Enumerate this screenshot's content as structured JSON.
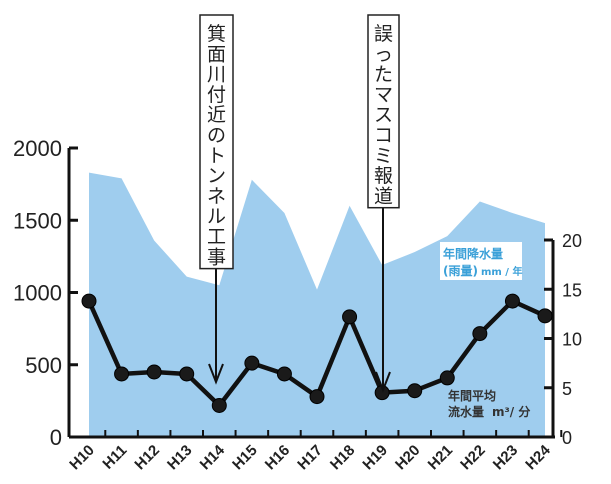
{
  "chart_data": {
    "type": "area+line",
    "categories": [
      "H10",
      "H11",
      "H12",
      "H13",
      "H14",
      "H15",
      "H16",
      "H17",
      "H18",
      "H19",
      "H20",
      "H21",
      "H22",
      "H23",
      "H24"
    ],
    "series": [
      {
        "name": "年間降水量（雨量）mm / 年",
        "type": "area",
        "axis": "left",
        "color": "#9fcdee",
        "values": [
          1830,
          1790,
          1360,
          1110,
          1050,
          1780,
          1550,
          1020,
          1600,
          1190,
          1280,
          1390,
          1630,
          1550,
          1480
        ]
      },
      {
        "name": "年間平均流水量 m³/ 分",
        "type": "line",
        "axis": "right",
        "color": "#111111",
        "values": [
          13.8,
          6.4,
          6.6,
          6.4,
          3.2,
          7.5,
          6.4,
          4.1,
          12.2,
          4.5,
          4.7,
          6.0,
          10.5,
          13.8,
          12.3
        ]
      }
    ],
    "left_axis": {
      "ylim": [
        0,
        2000
      ],
      "ticks": [
        "0",
        "500",
        "1000",
        "1500",
        "2000"
      ]
    },
    "right_axis": {
      "ylim": [
        0,
        20
      ],
      "ticks": [
        "0",
        "5",
        "10",
        "15",
        "20"
      ]
    },
    "legend_labels": {
      "rain_line1": "年間降水量",
      "rain_line2": "(雨量)",
      "rain_unit": "mm / 年",
      "flow_line1": "年間平均",
      "flow_line2": "流水量",
      "flow_unit": "m³/ 分"
    },
    "annotations": [
      {
        "text": "箕面川付近のトンネル工事",
        "at": "H14"
      },
      {
        "text": "誤ったマスコミ報道",
        "at": "H19"
      }
    ]
  }
}
